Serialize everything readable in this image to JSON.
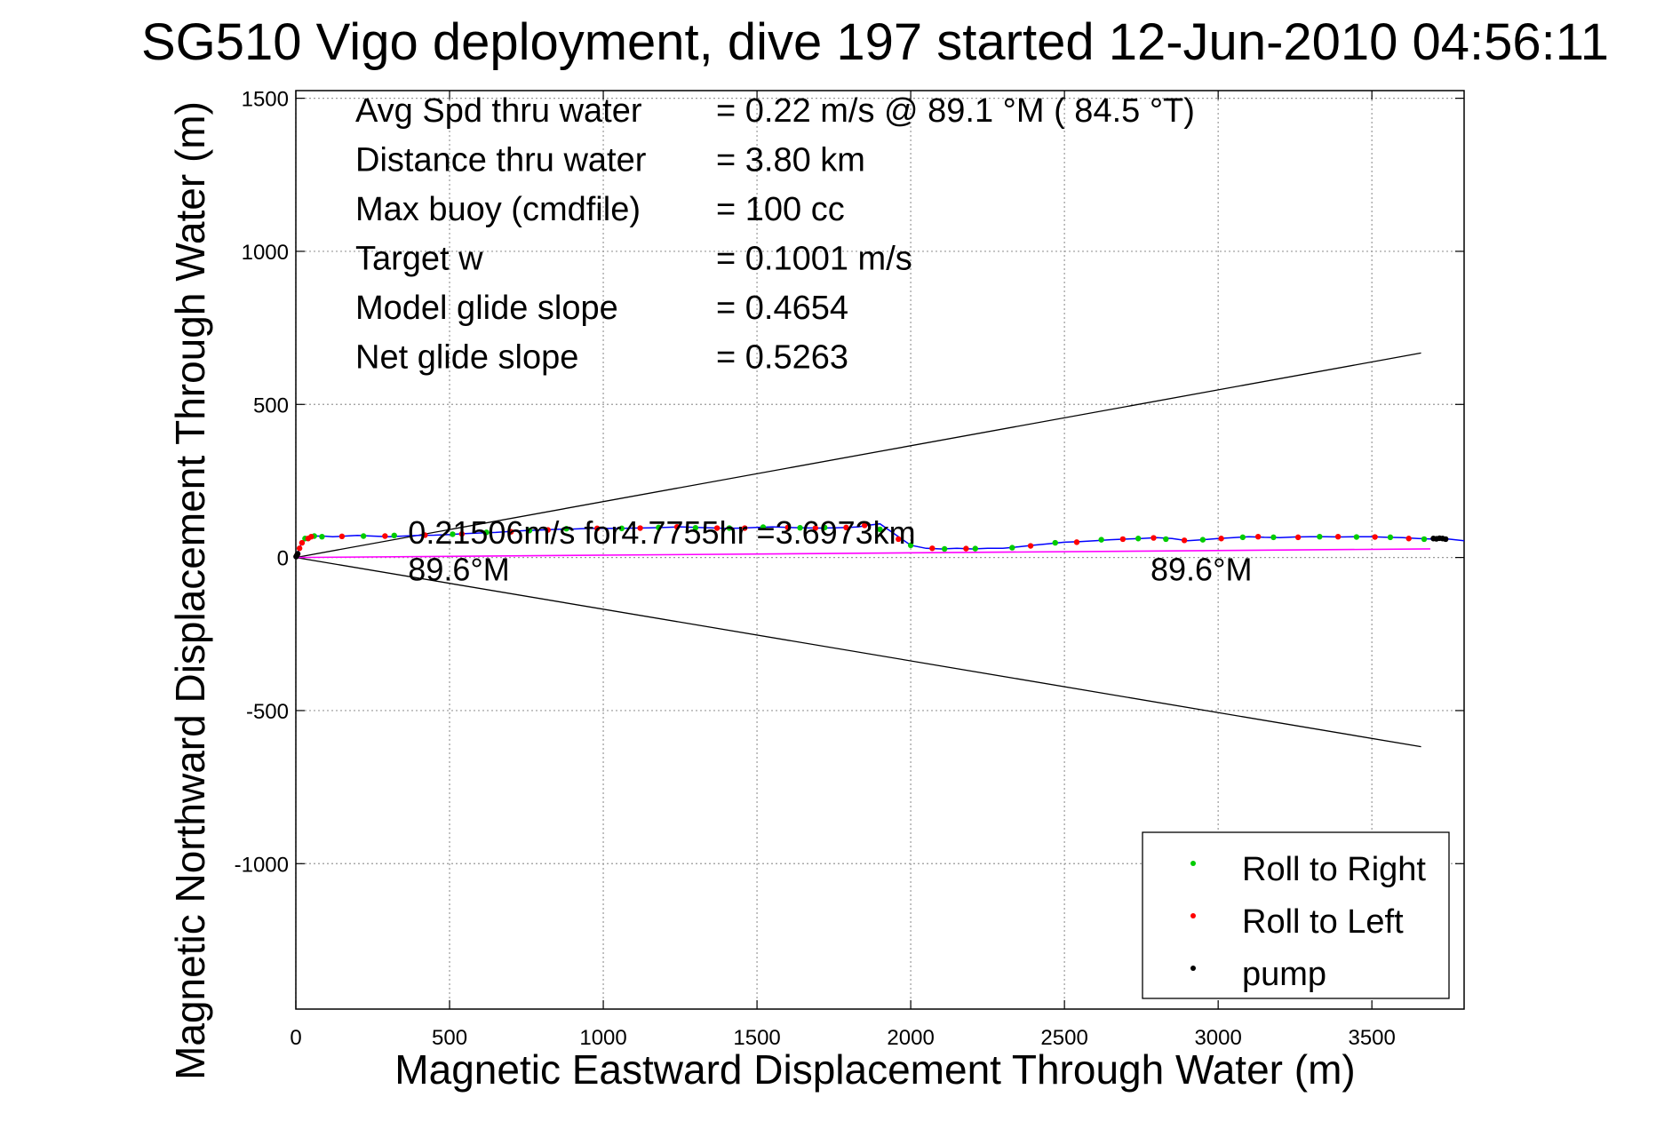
{
  "chart_data": {
    "type": "scatter",
    "title": "SG510 Vigo deployment, dive 197 started 12-Jun-2010 04:56:11",
    "xlabel": "Magnetic Eastward Displacement Through Water (m)",
    "ylabel": "Magnetic Northward Displacement Through Water (m)",
    "xlim": [
      0,
      3800
    ],
    "ylim": [
      -1475,
      1525
    ],
    "xticks": [
      0,
      500,
      1000,
      1500,
      2000,
      2500,
      3000,
      3500
    ],
    "yticks": [
      -1000,
      -500,
      0,
      500,
      1000,
      1500
    ],
    "grid": true,
    "legend_position": "bottom-right",
    "colors": {
      "track": "#0000ff",
      "roll_right": "#00cc00",
      "roll_left": "#ff0000",
      "pump": "#000000",
      "dac": "#ff00ff",
      "cone": "#000000",
      "grid": "#999999"
    },
    "stats": [
      {
        "label": "Avg Spd thru water",
        "value": "=  0.22 m/s @  89.1 °M ( 84.5 °T)"
      },
      {
        "label": "Distance thru water",
        "value": "=  3.80 km"
      },
      {
        "label": "Max buoy (cmdfile)",
        "value": "= 100 cc"
      },
      {
        "label": "Target w",
        "value": "= 0.1001 m/s"
      },
      {
        "label": "Model glide slope",
        "value": "= 0.4654"
      },
      {
        "label": "Net glide slope",
        "value": "= 0.5263"
      }
    ],
    "annotations": [
      {
        "text": "0.21506m/s for4.7755hr =3.6973km",
        "x": 365,
        "y": 45
      },
      {
        "text": "89.6°M",
        "x": 365,
        "y": -75
      },
      {
        "text": "89.6°M",
        "x": 2780,
        "y": -75
      }
    ],
    "cone_lines": [
      {
        "x": [
          0,
          3660
        ],
        "y": [
          0,
          668
        ]
      },
      {
        "x": [
          0,
          3660
        ],
        "y": [
          0,
          -618
        ]
      }
    ],
    "dac_line": {
      "x": [
        0,
        3690
      ],
      "y": [
        0,
        28
      ]
    },
    "track": {
      "x": [
        0,
        8,
        16,
        25,
        35,
        45,
        55,
        70,
        90,
        120,
        160,
        200,
        250,
        300,
        350,
        400,
        450,
        500,
        550,
        600,
        650,
        700,
        750,
        800,
        850,
        900,
        950,
        1000,
        1050,
        1100,
        1150,
        1200,
        1250,
        1300,
        1350,
        1400,
        1450,
        1500,
        1550,
        1600,
        1650,
        1700,
        1750,
        1800,
        1830,
        1860,
        1900,
        1950,
        2000,
        2050,
        2100,
        2150,
        2200,
        2250,
        2300,
        2350,
        2400,
        2450,
        2500,
        2550,
        2600,
        2650,
        2700,
        2750,
        2800,
        2850,
        2900,
        2950,
        3000,
        3050,
        3100,
        3150,
        3200,
        3250,
        3300,
        3350,
        3400,
        3450,
        3500,
        3550,
        3600,
        3650,
        3700,
        3750,
        3800
      ],
      "y": [
        0,
        20,
        40,
        55,
        62,
        68,
        70,
        70,
        70,
        68,
        70,
        72,
        70,
        68,
        70,
        72,
        73,
        75,
        78,
        80,
        82,
        85,
        88,
        90,
        92,
        93,
        95,
        95,
        95,
        96,
        97,
        98,
        100,
        98,
        97,
        95,
        96,
        98,
        100,
        98,
        97,
        96,
        97,
        98,
        100,
        105,
        110,
        75,
        40,
        30,
        28,
        30,
        28,
        30,
        30,
        35,
        40,
        45,
        50,
        52,
        55,
        58,
        60,
        62,
        65,
        62,
        55,
        58,
        62,
        65,
        68,
        66,
        65,
        67,
        68,
        68,
        67,
        68,
        68,
        66,
        65,
        62,
        60,
        60,
        55
      ]
    },
    "roll_right": {
      "x": [
        30,
        60,
        85,
        220,
        320,
        510,
        620,
        760,
        880,
        1060,
        1180,
        1300,
        1410,
        1520,
        1640,
        1720,
        1900,
        2000,
        2110,
        2210,
        2330,
        2470,
        2620,
        2740,
        2830,
        2950,
        3080,
        3180,
        3330,
        3450,
        3560,
        3670
      ],
      "y": [
        62,
        70,
        68,
        70,
        72,
        76,
        82,
        88,
        94,
        95,
        98,
        97,
        96,
        99,
        97,
        98,
        92,
        40,
        28,
        29,
        32,
        48,
        58,
        62,
        60,
        58,
        66,
        66,
        68,
        67,
        66,
        60
      ]
    },
    "roll_left": {
      "x": [
        5,
        12,
        20,
        40,
        50,
        150,
        290,
        420,
        540,
        700,
        820,
        980,
        1120,
        1240,
        1370,
        1460,
        1600,
        1690,
        1790,
        1850,
        1960,
        2070,
        2180,
        2390,
        2540,
        2690,
        2790,
        2890,
        3010,
        3130,
        3260,
        3390,
        3510,
        3620
      ],
      "y": [
        10,
        30,
        48,
        62,
        68,
        69,
        70,
        73,
        77,
        84,
        90,
        95,
        96,
        100,
        96,
        96,
        98,
        96,
        98,
        105,
        60,
        30,
        29,
        38,
        50,
        60,
        64,
        56,
        62,
        68,
        66,
        68,
        67,
        62
      ]
    },
    "pump": {
      "x": [
        1,
        3,
        6,
        3700,
        3710,
        3720,
        3730,
        3740
      ],
      "y": [
        3,
        6,
        12,
        62,
        61,
        63,
        62,
        60
      ]
    },
    "legend": [
      {
        "label": "Roll to Right",
        "color": "#00cc00"
      },
      {
        "label": "Roll to Left",
        "color": "#ff0000"
      },
      {
        "label": "pump",
        "color": "#000000"
      }
    ]
  }
}
